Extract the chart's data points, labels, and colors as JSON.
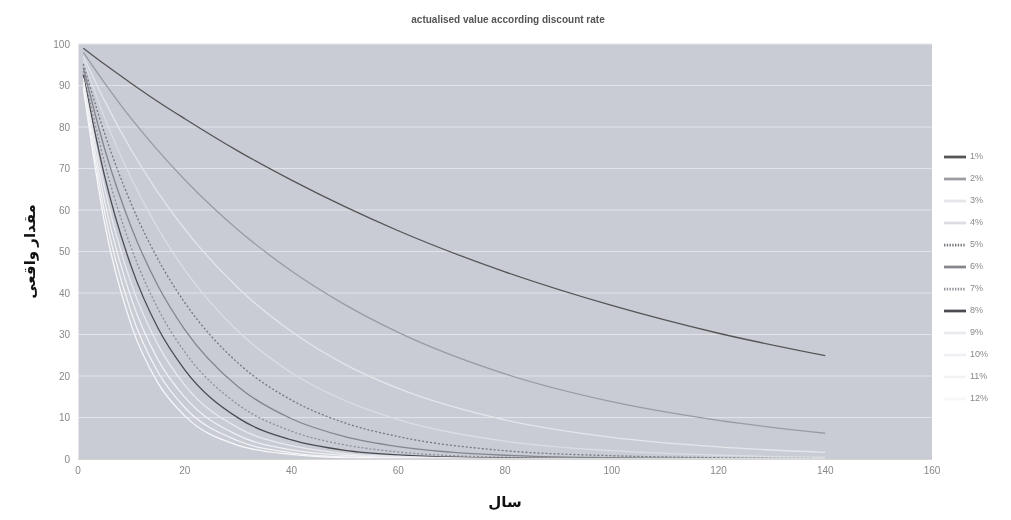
{
  "chart_data": {
    "type": "line",
    "title": "actualised value according discount rate",
    "xlabel": "سال",
    "ylabel": "مقدار واقعی",
    "x": [
      1,
      5,
      10,
      15,
      20,
      30,
      40,
      50,
      60,
      80,
      100,
      120,
      140
    ],
    "xlim": [
      0,
      160
    ],
    "xticks": [
      0,
      20,
      40,
      60,
      80,
      100,
      120,
      140,
      160
    ],
    "ylim": [
      0,
      100
    ],
    "yticks": [
      0,
      10,
      20,
      30,
      40,
      50,
      60,
      70,
      80,
      90,
      100
    ],
    "grid": "y",
    "legend": "right",
    "marker": "none",
    "series": [
      {
        "name": "1%",
        "color": "#555555",
        "values": [
          99.0,
          95.1,
          90.5,
          86.1,
          82.0,
          74.2,
          67.2,
          60.8,
          55.0,
          45.1,
          37.0,
          30.3,
          24.9
        ]
      },
      {
        "name": "2%",
        "color": "#9a9ca2",
        "values": [
          98.0,
          90.6,
          82.0,
          74.3,
          67.3,
          55.2,
          45.3,
          37.2,
          30.5,
          20.5,
          13.8,
          9.3,
          6.2
        ]
      },
      {
        "name": "3%",
        "color": "#e4e6ea",
        "values": [
          97.1,
          86.3,
          74.4,
          64.2,
          55.4,
          41.2,
          30.7,
          22.8,
          17.0,
          9.4,
          5.2,
          2.9,
          1.6
        ]
      },
      {
        "name": "4%",
        "color": "#dcdee3",
        "values": [
          96.2,
          82.2,
          67.6,
          55.5,
          45.6,
          30.8,
          20.8,
          14.1,
          9.5,
          4.3,
          2.0,
          0.9,
          0.4
        ]
      },
      {
        "name": "5%",
        "color": "#76787e",
        "line_style": "dotted",
        "values": [
          95.2,
          78.4,
          61.4,
          48.1,
          37.7,
          23.1,
          14.2,
          8.7,
          5.4,
          2.0,
          0.8,
          0.3,
          0.1
        ]
      },
      {
        "name": "6%",
        "color": "#84868c",
        "values": [
          94.3,
          74.7,
          55.8,
          41.7,
          31.2,
          17.4,
          9.7,
          5.4,
          3.0,
          0.9,
          0.3,
          0.1,
          0.0
        ]
      },
      {
        "name": "7%",
        "color": "#8e9096",
        "line_style": "dotted",
        "values": [
          93.5,
          71.3,
          50.8,
          36.2,
          25.8,
          13.1,
          6.7,
          3.4,
          1.7,
          0.4,
          0.1,
          0.0,
          0.0
        ]
      },
      {
        "name": "8%",
        "color": "#4a4b50",
        "values": [
          92.6,
          68.1,
          46.3,
          31.5,
          21.5,
          9.9,
          4.6,
          2.1,
          1.0,
          0.2,
          0.0,
          0.0,
          0.0
        ]
      },
      {
        "name": "9%",
        "color": "#e8eaee",
        "values": [
          91.7,
          65.0,
          42.2,
          27.5,
          17.8,
          7.5,
          3.2,
          1.3,
          0.6,
          0.1,
          0.0,
          0.0,
          0.0
        ]
      },
      {
        "name": "10%",
        "color": "#eef0f3",
        "values": [
          90.9,
          62.1,
          38.6,
          23.9,
          14.9,
          5.7,
          2.2,
          0.9,
          0.3,
          0.0,
          0.0,
          0.0,
          0.0
        ]
      },
      {
        "name": "11%",
        "color": "#f2f3f5",
        "values": [
          90.1,
          59.3,
          35.2,
          20.9,
          12.4,
          4.4,
          1.5,
          0.5,
          0.2,
          0.0,
          0.0,
          0.0,
          0.0
        ]
      },
      {
        "name": "12%",
        "color": "#f6f7f9",
        "values": [
          89.3,
          56.7,
          32.2,
          18.3,
          10.4,
          3.3,
          1.1,
          0.3,
          0.1,
          0.0,
          0.0,
          0.0,
          0.0
        ]
      }
    ]
  }
}
